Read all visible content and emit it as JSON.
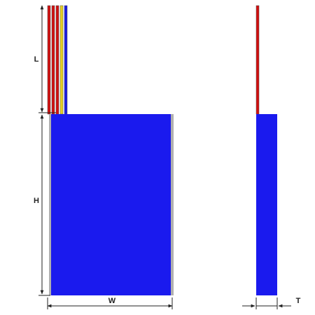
{
  "labels": {
    "length": "L",
    "height": "H",
    "width": "W",
    "thickness": "T"
  }
}
